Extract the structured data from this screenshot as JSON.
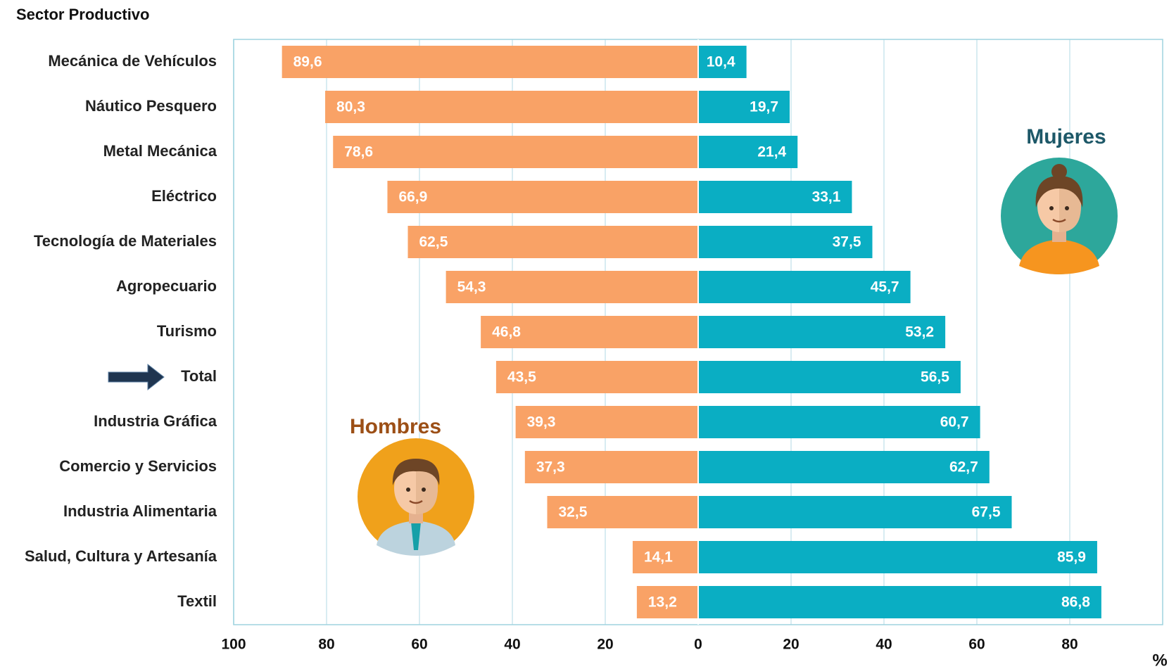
{
  "chart_data": {
    "type": "diverging-bar",
    "title": "Sector Productivo",
    "x_label": "%",
    "categories": [
      "Mecánica de Vehículos",
      "Náutico Pesquero",
      "Metal Mecánica",
      "Eléctrico",
      "Tecnología de Materiales",
      "Agropecuario",
      "Turismo",
      "Total",
      "Industria Gráfica",
      "Comercio y Servicios",
      "Industria Alimentaria",
      "Salud, Cultura y Artesanía",
      "Textil"
    ],
    "series": [
      {
        "name": "Hombres",
        "color": "#f9a266",
        "label_color": "#9c4f16",
        "direction": "left",
        "values": [
          89.6,
          80.3,
          78.6,
          66.9,
          62.5,
          54.3,
          46.8,
          43.5,
          39.3,
          37.3,
          32.5,
          14.1,
          13.2
        ],
        "value_labels": [
          "89,6",
          "80,3",
          "78,6",
          "66,9",
          "62,5",
          "54,3",
          "46,8",
          "43,5",
          "39,3",
          "37,3",
          "32,5",
          "14,1",
          "13,2"
        ]
      },
      {
        "name": "Mujeres",
        "color": "#0aaec3",
        "label_color": "#1d5868",
        "direction": "right",
        "values": [
          10.4,
          19.7,
          21.4,
          33.1,
          37.5,
          45.7,
          53.2,
          56.5,
          60.7,
          62.7,
          67.5,
          85.9,
          86.8
        ],
        "value_labels": [
          "10,4",
          "19,7",
          "21,4",
          "33,1",
          "37,5",
          "45,7",
          "53,2",
          "56,5",
          "60,7",
          "62,7",
          "67,5",
          "85,9",
          "86,8"
        ]
      }
    ],
    "xlim": [
      -100,
      100
    ],
    "xticks": [
      {
        "value": -100,
        "label": "100"
      },
      {
        "value": -80,
        "label": "80"
      },
      {
        "value": -60,
        "label": "60"
      },
      {
        "value": -40,
        "label": "40"
      },
      {
        "value": -20,
        "label": "20"
      },
      0,
      20,
      40,
      60,
      80
    ],
    "grid": true
  }
}
